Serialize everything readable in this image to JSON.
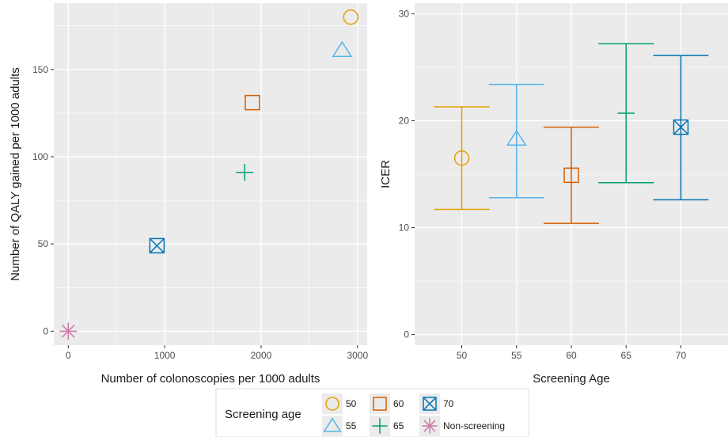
{
  "colors": {
    "50": "#E69F00",
    "55": "#56B4E9",
    "60": "#D55E00",
    "65": "#009E73",
    "70": "#0072B2",
    "Non-screening": "#CC79A7",
    "panel": "#EBEBEB",
    "grid": "#FFFFFF"
  },
  "chart_data": [
    {
      "type": "scatter",
      "xlabel": "Number of colonoscopies per 1000 adults",
      "ylabel": "Number of QALY gained per 1000 adults",
      "xlim": [
        -150,
        3100
      ],
      "ylim": [
        -8,
        188
      ],
      "xticks": [
        0,
        1000,
        2000,
        3000
      ],
      "yticks": [
        0,
        50,
        100,
        150
      ],
      "grid": true,
      "points": [
        {
          "group": "50",
          "shape": "circle",
          "x": 2930,
          "y": 180
        },
        {
          "group": "55",
          "shape": "triangle",
          "x": 2840,
          "y": 161
        },
        {
          "group": "60",
          "shape": "square",
          "x": 1910,
          "y": 131
        },
        {
          "group": "65",
          "shape": "plus",
          "x": 1830,
          "y": 91
        },
        {
          "group": "70",
          "shape": "square-x",
          "x": 920,
          "y": 49
        },
        {
          "group": "Non-screening",
          "shape": "asterisk",
          "x": 0,
          "y": 0
        }
      ]
    },
    {
      "type": "errorbar",
      "xlabel": "Screening Age",
      "ylabel": "ICER",
      "ylim": [
        -1,
        31
      ],
      "yticks": [
        0,
        10,
        20,
        30
      ],
      "categories": [
        "50",
        "55",
        "60",
        "65",
        "70"
      ],
      "grid": true,
      "points": [
        {
          "group": "50",
          "shape": "circle",
          "y": 16.5,
          "low": 11.7,
          "high": 21.3
        },
        {
          "group": "55",
          "shape": "triangle",
          "y": 18.3,
          "low": 12.8,
          "high": 23.4
        },
        {
          "group": "60",
          "shape": "square",
          "y": 14.9,
          "low": 10.4,
          "high": 19.4
        },
        {
          "group": "65",
          "shape": "plus",
          "y": 20.7,
          "low": 14.2,
          "high": 27.2
        },
        {
          "group": "70",
          "shape": "square-x",
          "y": 19.4,
          "low": 12.6,
          "high": 26.1
        }
      ]
    }
  ],
  "legend": {
    "title": "Screening age",
    "placement": "bottom",
    "items": [
      {
        "label": "50",
        "shape": "circle",
        "group": "50"
      },
      {
        "label": "55",
        "shape": "triangle",
        "group": "55"
      },
      {
        "label": "60",
        "shape": "square",
        "group": "60"
      },
      {
        "label": "65",
        "shape": "plus",
        "group": "65"
      },
      {
        "label": "70",
        "shape": "square-x",
        "group": "70"
      },
      {
        "label": "Non-screening",
        "shape": "asterisk",
        "group": "Non-screening"
      }
    ]
  }
}
